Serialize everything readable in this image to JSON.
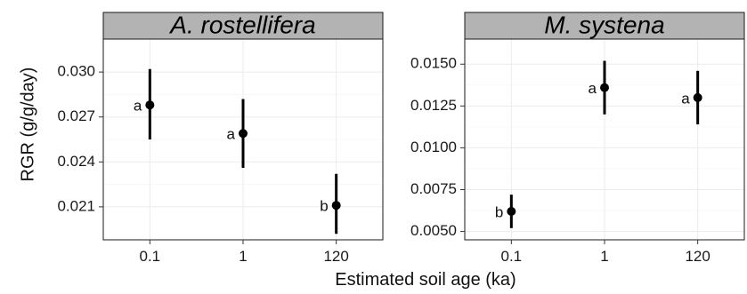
{
  "chart_data": {
    "type": "scatter",
    "subtype": "point-range (mean with error bars), faceted",
    "xlabel": "Estimated soil age (ka)",
    "ylabel": "RGR (g/g/day)",
    "categories": [
      "0.1",
      "1",
      "120"
    ],
    "grid": true,
    "legend": "none",
    "panels": [
      {
        "title": "A. rostellifera",
        "ylim": [
          0.0188,
          0.0322
        ],
        "yticks": [
          0.021,
          0.024,
          0.027,
          0.03
        ],
        "ytick_labels": [
          "0.021",
          "0.024",
          "0.027",
          "0.030"
        ],
        "points": [
          {
            "x": "0.1",
            "y": 0.0278,
            "lower": 0.0255,
            "upper": 0.0302,
            "label": "a"
          },
          {
            "x": "1",
            "y": 0.0259,
            "lower": 0.0236,
            "upper": 0.0282,
            "label": "a"
          },
          {
            "x": "120",
            "y": 0.0211,
            "lower": 0.0192,
            "upper": 0.0232,
            "label": "b"
          }
        ]
      },
      {
        "title": "M. systena",
        "ylim": [
          0.0045,
          0.0165
        ],
        "yticks": [
          0.005,
          0.0075,
          0.01,
          0.0125,
          0.015
        ],
        "ytick_labels": [
          "0.0050",
          "0.0075",
          "0.0100",
          "0.0125",
          "0.0150"
        ],
        "points": [
          {
            "x": "0.1",
            "y": 0.0062,
            "lower": 0.0052,
            "upper": 0.0072,
            "label": "b"
          },
          {
            "x": "1",
            "y": 0.0136,
            "lower": 0.012,
            "upper": 0.0152,
            "label": "a"
          },
          {
            "x": "120",
            "y": 0.013,
            "lower": 0.0114,
            "upper": 0.0146,
            "label": "a"
          }
        ]
      }
    ]
  },
  "colors": {
    "strip": "#b3b3b3",
    "panel_border": "#1a1a1a",
    "grid": "#ebebeb",
    "points": "#000000"
  }
}
